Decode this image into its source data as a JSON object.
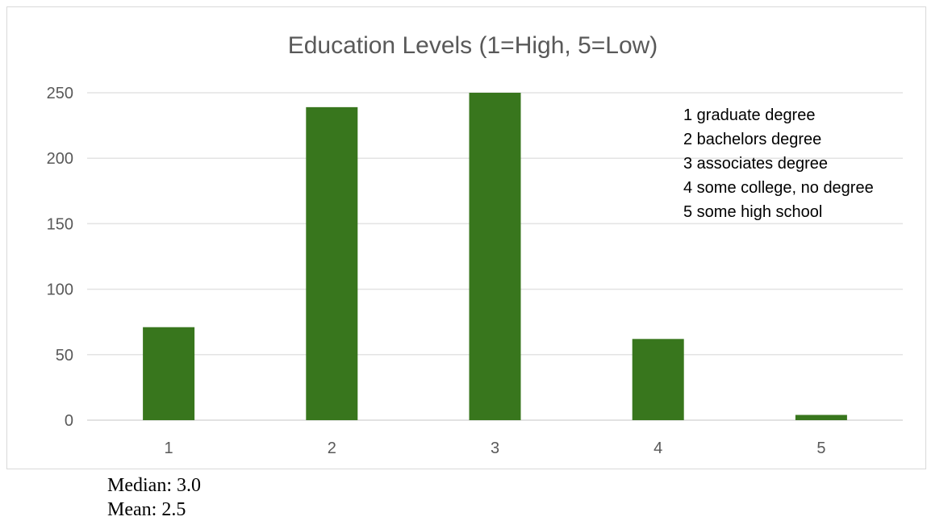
{
  "chart_data": {
    "type": "bar",
    "title": "Education Levels (1=High, 5=Low)",
    "xlabel": "",
    "ylabel": "",
    "categories": [
      "1",
      "2",
      "3",
      "4",
      "5"
    ],
    "values": [
      71,
      239,
      250,
      62,
      4
    ],
    "ylim": [
      0,
      250
    ],
    "yticks": [
      0,
      50,
      100,
      150,
      200,
      250
    ],
    "grid": true,
    "bar_color": "#38761d",
    "annotation_lines": [
      "1 graduate degree",
      "2 bachelors degree",
      "3 associates degree",
      "4 some college, no degree",
      "5 some high school"
    ]
  },
  "stats": {
    "median": "Median: 3.0",
    "mean": "Mean: 2.5"
  }
}
